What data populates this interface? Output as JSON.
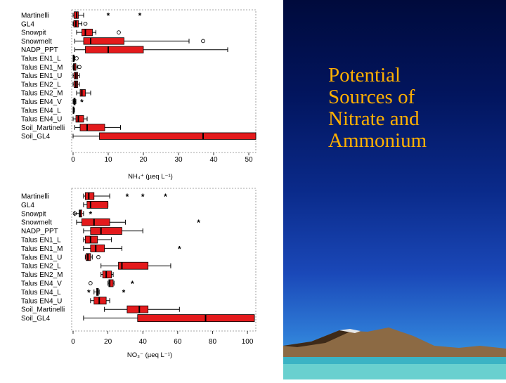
{
  "slide": {
    "title_lines": [
      "Potential",
      "Sources of",
      "Nitrate and",
      "Ammonium"
    ],
    "title_color": "#ffb000"
  },
  "colors": {
    "box_fill": "#e41a1c",
    "box_edge": "#000000",
    "axis": "#000000"
  },
  "chart_data": [
    {
      "type": "boxplot",
      "orientation": "horizontal",
      "categories": [
        "Martinelli",
        "GL4",
        "Snowpit",
        "Snowmelt",
        "NADP_PPT",
        "Talus EN1_L",
        "Talus EN1_M",
        "Talus EN1_U",
        "Talus EN2_L",
        "Talus EN2_M",
        "Talus EN4_V",
        "Talus EN4_L",
        "Talus EN4_U",
        "Soil_Martinelli",
        "Soil_GL4"
      ],
      "xlabel": "NH₄⁺ (µeq L⁻¹)",
      "xlim": [
        0,
        52
      ],
      "xticks": [
        "0",
        "10",
        "20",
        "30",
        "40",
        "50"
      ],
      "boxes": [
        {
          "wmin": 0,
          "q1": 0.3,
          "median": 1,
          "q3": 1.5,
          "wmax": 3,
          "outliers": [
            {
              "v": 10,
              "m": "*"
            },
            {
              "v": 19,
              "m": "*"
            }
          ]
        },
        {
          "wmin": 0,
          "q1": 0.2,
          "median": 0.8,
          "q3": 1.5,
          "wmax": 2.5,
          "outliers": [
            {
              "v": 3.5,
              "m": "o"
            }
          ]
        },
        {
          "wmin": 1,
          "q1": 2.5,
          "median": 3.5,
          "q3": 5.5,
          "wmax": 6.5,
          "outliers": [
            {
              "v": 13,
              "m": "o"
            }
          ]
        },
        {
          "wmin": 0.5,
          "q1": 3,
          "median": 5,
          "q3": 14.5,
          "wmax": 33,
          "outliers": [
            {
              "v": 37,
              "m": "o"
            }
          ]
        },
        {
          "wmin": 0.5,
          "q1": 3.5,
          "median": 10,
          "q3": 20,
          "wmax": 44,
          "outliers": []
        },
        {
          "wmin": 0,
          "q1": 0,
          "median": 0.1,
          "q3": 0.3,
          "wmax": 0.5,
          "outliers": [
            {
              "v": 1,
              "m": "o"
            }
          ]
        },
        {
          "wmin": 0,
          "q1": 0.1,
          "median": 0.3,
          "q3": 0.8,
          "wmax": 1.2,
          "outliers": [
            {
              "v": 1.8,
              "m": "o"
            }
          ]
        },
        {
          "wmin": 0,
          "q1": 0.3,
          "median": 0.8,
          "q3": 1.3,
          "wmax": 1.8,
          "outliers": []
        },
        {
          "wmin": 0,
          "q1": 0.3,
          "median": 0.8,
          "q3": 1.3,
          "wmax": 1.8,
          "outliers": []
        },
        {
          "wmin": 1,
          "q1": 2,
          "median": 2.5,
          "q3": 3.5,
          "wmax": 5,
          "outliers": []
        },
        {
          "wmin": 0,
          "q1": 0.2,
          "median": 0.4,
          "q3": 0.6,
          "wmax": 0.8,
          "outliers": [
            {
              "v": 2.5,
              "m": "*"
            }
          ]
        },
        {
          "wmin": 0,
          "q1": 0,
          "median": 0.1,
          "q3": 0.2,
          "wmax": 0.4,
          "outliers": []
        },
        {
          "wmin": 0,
          "q1": 0.8,
          "median": 1.5,
          "q3": 3,
          "wmax": 4,
          "outliers": []
        },
        {
          "wmin": 0.5,
          "q1": 2,
          "median": 4,
          "q3": 9,
          "wmax": 13.5,
          "outliers": []
        },
        {
          "wmin": 0,
          "q1": 7.5,
          "median": 37,
          "q3": 52,
          "wmax": 52,
          "outliers": []
        }
      ]
    },
    {
      "type": "boxplot",
      "orientation": "horizontal",
      "categories": [
        "Martinelli",
        "GL4",
        "Snowpit",
        "Snowmelt",
        "NADP_PPT",
        "Talus EN1_L",
        "Talus EN1_M",
        "Talus EN1_U",
        "Talus EN2_L",
        "Talus EN2_M",
        "Talus EN4_V",
        "Talus EN4_L",
        "Talus EN4_U",
        "Soil_Martinelli",
        "Soil_GL4"
      ],
      "xlabel": "NO₃⁻ (µeq L⁻¹)",
      "xlim": [
        0,
        104
      ],
      "xticks": [
        "0",
        "20",
        "40",
        "60",
        "80",
        "100"
      ],
      "boxes": [
        {
          "wmin": 6,
          "q1": 7,
          "median": 9,
          "q3": 12,
          "wmax": 21,
          "outliers": [
            {
              "v": 31,
              "m": "*"
            },
            {
              "v": 40,
              "m": "*"
            },
            {
              "v": 53,
              "m": "*"
            }
          ]
        },
        {
          "wmin": 6,
          "q1": 8,
          "median": 10,
          "q3": 20,
          "wmax": 20,
          "outliers": []
        },
        {
          "wmin": 1,
          "q1": 3.5,
          "median": 4,
          "q3": 5,
          "wmax": 6,
          "outliers": [
            {
              "v": 1,
              "m": "o"
            },
            {
              "v": 10,
              "m": "*"
            }
          ]
        },
        {
          "wmin": 2,
          "q1": 5,
          "median": 12,
          "q3": 21,
          "wmax": 30,
          "outliers": [
            {
              "v": 72,
              "m": "*"
            }
          ]
        },
        {
          "wmin": 6,
          "q1": 10,
          "median": 16,
          "q3": 28,
          "wmax": 40,
          "outliers": []
        },
        {
          "wmin": 6,
          "q1": 7,
          "median": 10,
          "q3": 14,
          "wmax": 22,
          "outliers": []
        },
        {
          "wmin": 6,
          "q1": 10,
          "median": 13,
          "q3": 18,
          "wmax": 28,
          "outliers": [
            {
              "v": 61,
              "m": "*"
            }
          ]
        },
        {
          "wmin": 7,
          "q1": 7.5,
          "median": 8.5,
          "q3": 10,
          "wmax": 11,
          "outliers": [
            {
              "v": 14.5,
              "m": "o"
            }
          ]
        },
        {
          "wmin": 16,
          "q1": 26,
          "median": 28,
          "q3": 43,
          "wmax": 56,
          "outliers": []
        },
        {
          "wmin": 16,
          "q1": 17,
          "median": 19,
          "q3": 22,
          "wmax": 23,
          "outliers": []
        },
        {
          "wmin": 20,
          "q1": 20.5,
          "median": 21,
          "q3": 23,
          "wmax": 23.5,
          "outliers": [
            {
              "v": 10,
              "m": "o"
            },
            {
              "v": 34,
              "m": "*"
            }
          ]
        },
        {
          "wmin": 12,
          "q1": 13.5,
          "median": 14,
          "q3": 14.5,
          "wmax": 15,
          "outliers": [
            {
              "v": 9,
              "m": "*"
            },
            {
              "v": 29,
              "m": "*"
            }
          ]
        },
        {
          "wmin": 10,
          "q1": 12,
          "median": 15,
          "q3": 19,
          "wmax": 21,
          "outliers": []
        },
        {
          "wmin": 18,
          "q1": 31,
          "median": 38,
          "q3": 43,
          "wmax": 61,
          "outliers": []
        },
        {
          "wmin": 6,
          "q1": 37,
          "median": 76,
          "q3": 104,
          "wmax": 104,
          "outliers": []
        }
      ]
    }
  ]
}
